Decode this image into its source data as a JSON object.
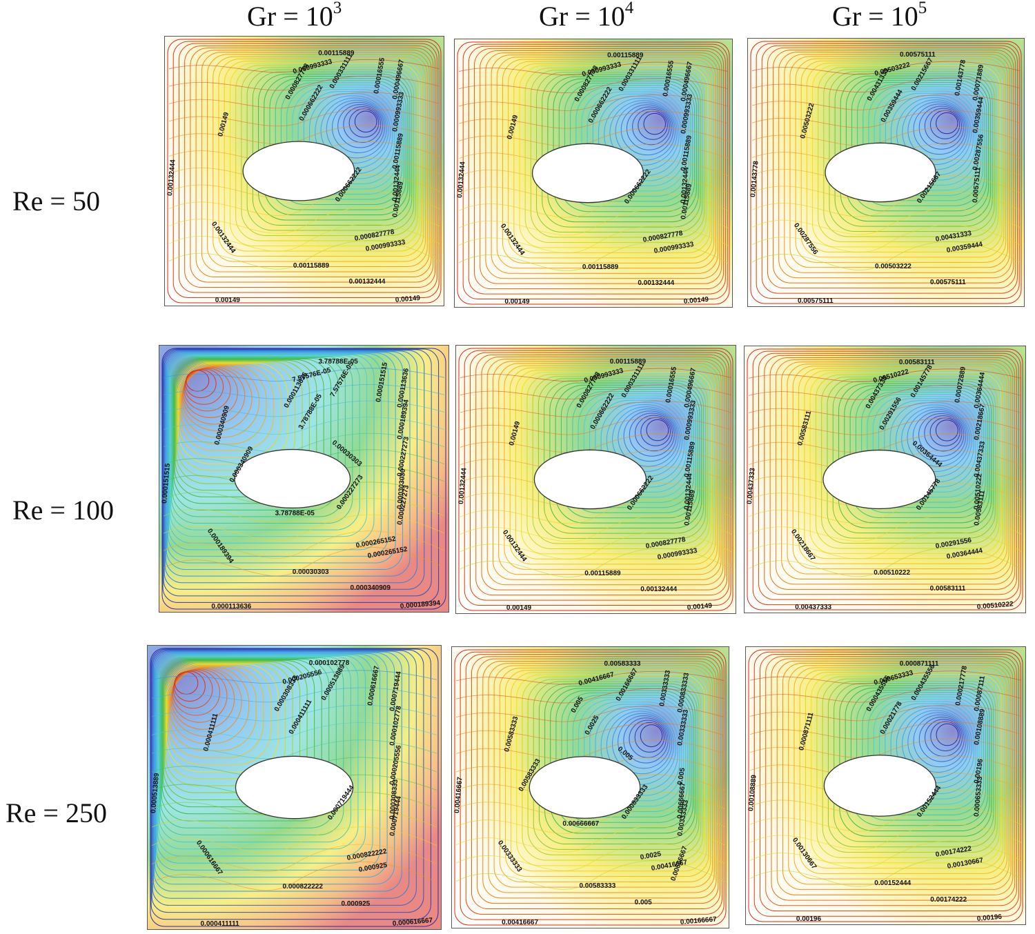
{
  "column_headers": [
    {
      "base": "Gr = 10",
      "exp": "3"
    },
    {
      "base": "Gr = 10",
      "exp": "4"
    },
    {
      "base": "Gr = 10",
      "exp": "5"
    }
  ],
  "row_headers": [
    "Re = 50",
    "Re = 100",
    "Re = 250"
  ],
  "colors": {
    "low": "#2a2aa8",
    "blue": "#3aa0e8",
    "cyan": "#4fd0d0",
    "green": "#3dbb3d",
    "yellow": "#f2e020",
    "orange": "#f08a1e",
    "red": "#d8281e",
    "contour_dark": "#b05a30",
    "frame": "#555555"
  },
  "panels": [
    {
      "id": "re50-gr3",
      "style": "warm",
      "labels": [
        "0.00115889",
        "0.000993333",
        "0.000827778",
        "0.000662222",
        "0.000331111",
        "0.00016555",
        "0.000496667",
        "0.000993333",
        "0.00115889",
        "0.00132444",
        "0.00149",
        "0.00132444",
        "0.00132444",
        "0.000662222",
        "0.000827778",
        "0.000993333",
        "0.00115889",
        "0.00132444",
        "0.00149",
        "0.00149",
        "0.00115889"
      ]
    },
    {
      "id": "re50-gr4",
      "style": "warm",
      "labels": [
        "0.00115889",
        "0.000993333",
        "0.000827778",
        "0.000662222",
        "0.000331111",
        "0.00016555",
        "0.000496667",
        "0.000993333",
        "0.00115889",
        "0.00132444",
        "0.00149",
        "0.00132444",
        "0.00132444",
        "0.000662222",
        "0.000827778",
        "0.000993333",
        "0.00115889",
        "0.00132444",
        "0.00149",
        "0.00149",
        "0.00115889"
      ]
    },
    {
      "id": "re50-gr5",
      "style": "hot",
      "labels": [
        "0.00575111",
        "0.00503222",
        "0.00431333",
        "0.00359444",
        "0.00215667",
        "0.00143778",
        "0.00071889",
        "0.00359444",
        "0.00287556",
        "0.00575111",
        "0.00503222",
        "0.00143778",
        "0.00287556",
        "0.00215667",
        "0.00431333",
        "0.00359444",
        "0.00503222",
        "0.00575111",
        "0.00575111"
      ]
    },
    {
      "id": "re100-gr3",
      "style": "cool",
      "labels": [
        "3.78788E-05",
        "7.57576E-05",
        "0.000113636",
        "3.78788E-05",
        "7.57576E-05",
        "0.000151515",
        "0.000113636",
        "0.000189394",
        "0.000227273",
        "0.000303030",
        "0.000340909",
        "0.000151515",
        "0.000189394",
        "0.000227273",
        "0.000265152",
        "0.000265152",
        "0.00030303",
        "0.000340909",
        "0.000113636",
        "0.000189394",
        "0.000227273",
        "0.00030303",
        "0.000340909",
        "3.78788E-05"
      ]
    },
    {
      "id": "re100-gr4",
      "style": "warm",
      "labels": [
        "0.00115889",
        "0.000993333",
        "0.000827778",
        "0.000662222",
        "0.000331111",
        "0.00016555",
        "0.000496667",
        "0.000993333",
        "0.00115889",
        "0.00132444",
        "0.00149",
        "0.00132444",
        "0.00132444",
        "0.000662222",
        "0.000827778",
        "0.000993333",
        "0.00115889",
        "0.00132444",
        "0.00149",
        "0.00149",
        "0.00115889"
      ]
    },
    {
      "id": "re100-gr5",
      "style": "hot",
      "labels": [
        "0.00583111",
        "0.00510222",
        "0.00437333",
        "0.00291556",
        "0.00145778",
        "0.00072889",
        "0.00364444",
        "0.00218667",
        "0.00437333",
        "0.00510222",
        "0.00583111",
        "0.00437333",
        "0.00218667",
        "0.00145778",
        "0.00291556",
        "0.00364444",
        "0.00510222",
        "0.00583111",
        "0.00437333",
        "0.00510222",
        "0.00583111",
        "0.00364444"
      ]
    },
    {
      "id": "re250-gr3",
      "style": "cool",
      "labels": [
        "0.000102778",
        "0.000205556",
        "0.000308333",
        "0.000411111",
        "0.000513889",
        "0.000616667",
        "0.000719444",
        "0.000102778",
        "0.000205556",
        "0.000308333",
        "0.000411111",
        "0.000513889",
        "0.000616667",
        "0.000719444",
        "0.000822222",
        "0.000925",
        "0.000822222",
        "0.000925",
        "0.000411111",
        "0.000616667",
        "0.000719444"
      ]
    },
    {
      "id": "re250-gr4",
      "style": "green",
      "labels": [
        "0.00583333",
        "0.00416667",
        "0.005",
        "0.0025",
        "0.00166667",
        "0.00333333",
        "0.000833333",
        "0.00333333",
        "0.005",
        "0.00666667",
        "0.00583333",
        "0.00416667",
        "0.00333333",
        "0.000833333",
        "0.0025",
        "0.00416667",
        "0.00583333",
        "0.005",
        "0.00416667",
        "0.00166667",
        "0.00333333",
        "0.005",
        "0.00583333",
        "0.00666667",
        "0.00666667"
      ]
    },
    {
      "id": "re250-gr5",
      "style": "green",
      "labels": [
        "0.000871111",
        "0.000653333",
        "0.000435556",
        "0.00021778",
        "0.000435556",
        "0.000217778",
        "0.00087111",
        "0.00108889",
        "0.00196",
        "0.000653333",
        "0.000871111",
        "0.00108889",
        "0.00130667",
        "0.00152444",
        "0.00174222",
        "0.00130667",
        "0.00152444",
        "0.00174222",
        "0.00196",
        "0.00196"
      ]
    }
  ]
}
